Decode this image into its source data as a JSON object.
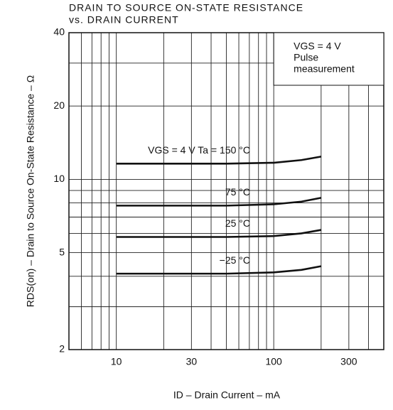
{
  "chart_data": {
    "type": "line",
    "title": "DRAIN TO SOURCE ON-STATE RESISTANCE",
    "subtitle": "vs. DRAIN CURRENT",
    "x_label": "ID – Drain Current – mA",
    "y_label": "RDS(on) – Drain to Source On-State Resistance – Ω",
    "annotation": [
      "VGS = 4 V",
      "Pulse",
      "measurement"
    ],
    "x": [
      10,
      20,
      50,
      100,
      150,
      200
    ],
    "series": [
      {
        "name": "VGS = 4 V  Ta = 150 °C",
        "color": "#111111",
        "values": [
          11.6,
          11.6,
          11.6,
          11.7,
          12.0,
          12.4
        ]
      },
      {
        "name": "75 °C",
        "color": "#111111",
        "values": [
          7.8,
          7.8,
          7.8,
          7.9,
          8.1,
          8.4
        ]
      },
      {
        "name": "25 °C",
        "color": "#111111",
        "values": [
          5.8,
          5.8,
          5.8,
          5.85,
          6.0,
          6.2
        ]
      },
      {
        "name": "−25 °C",
        "color": "#111111",
        "values": [
          4.1,
          4.1,
          4.1,
          4.15,
          4.25,
          4.4
        ]
      }
    ],
    "xlim": [
      5,
      500
    ],
    "ylim": [
      2,
      40
    ],
    "xticks": [
      10,
      30,
      100,
      300
    ],
    "yticks": [
      2,
      5,
      10,
      20,
      40
    ],
    "x_minor_grid": [
      6,
      7,
      8,
      9,
      20,
      40,
      50,
      60,
      70,
      80,
      90,
      200,
      400
    ],
    "y_minor_grid": [
      3,
      4,
      6,
      7,
      8,
      9,
      30
    ],
    "log_x": true,
    "log_y": true,
    "grid": true
  }
}
